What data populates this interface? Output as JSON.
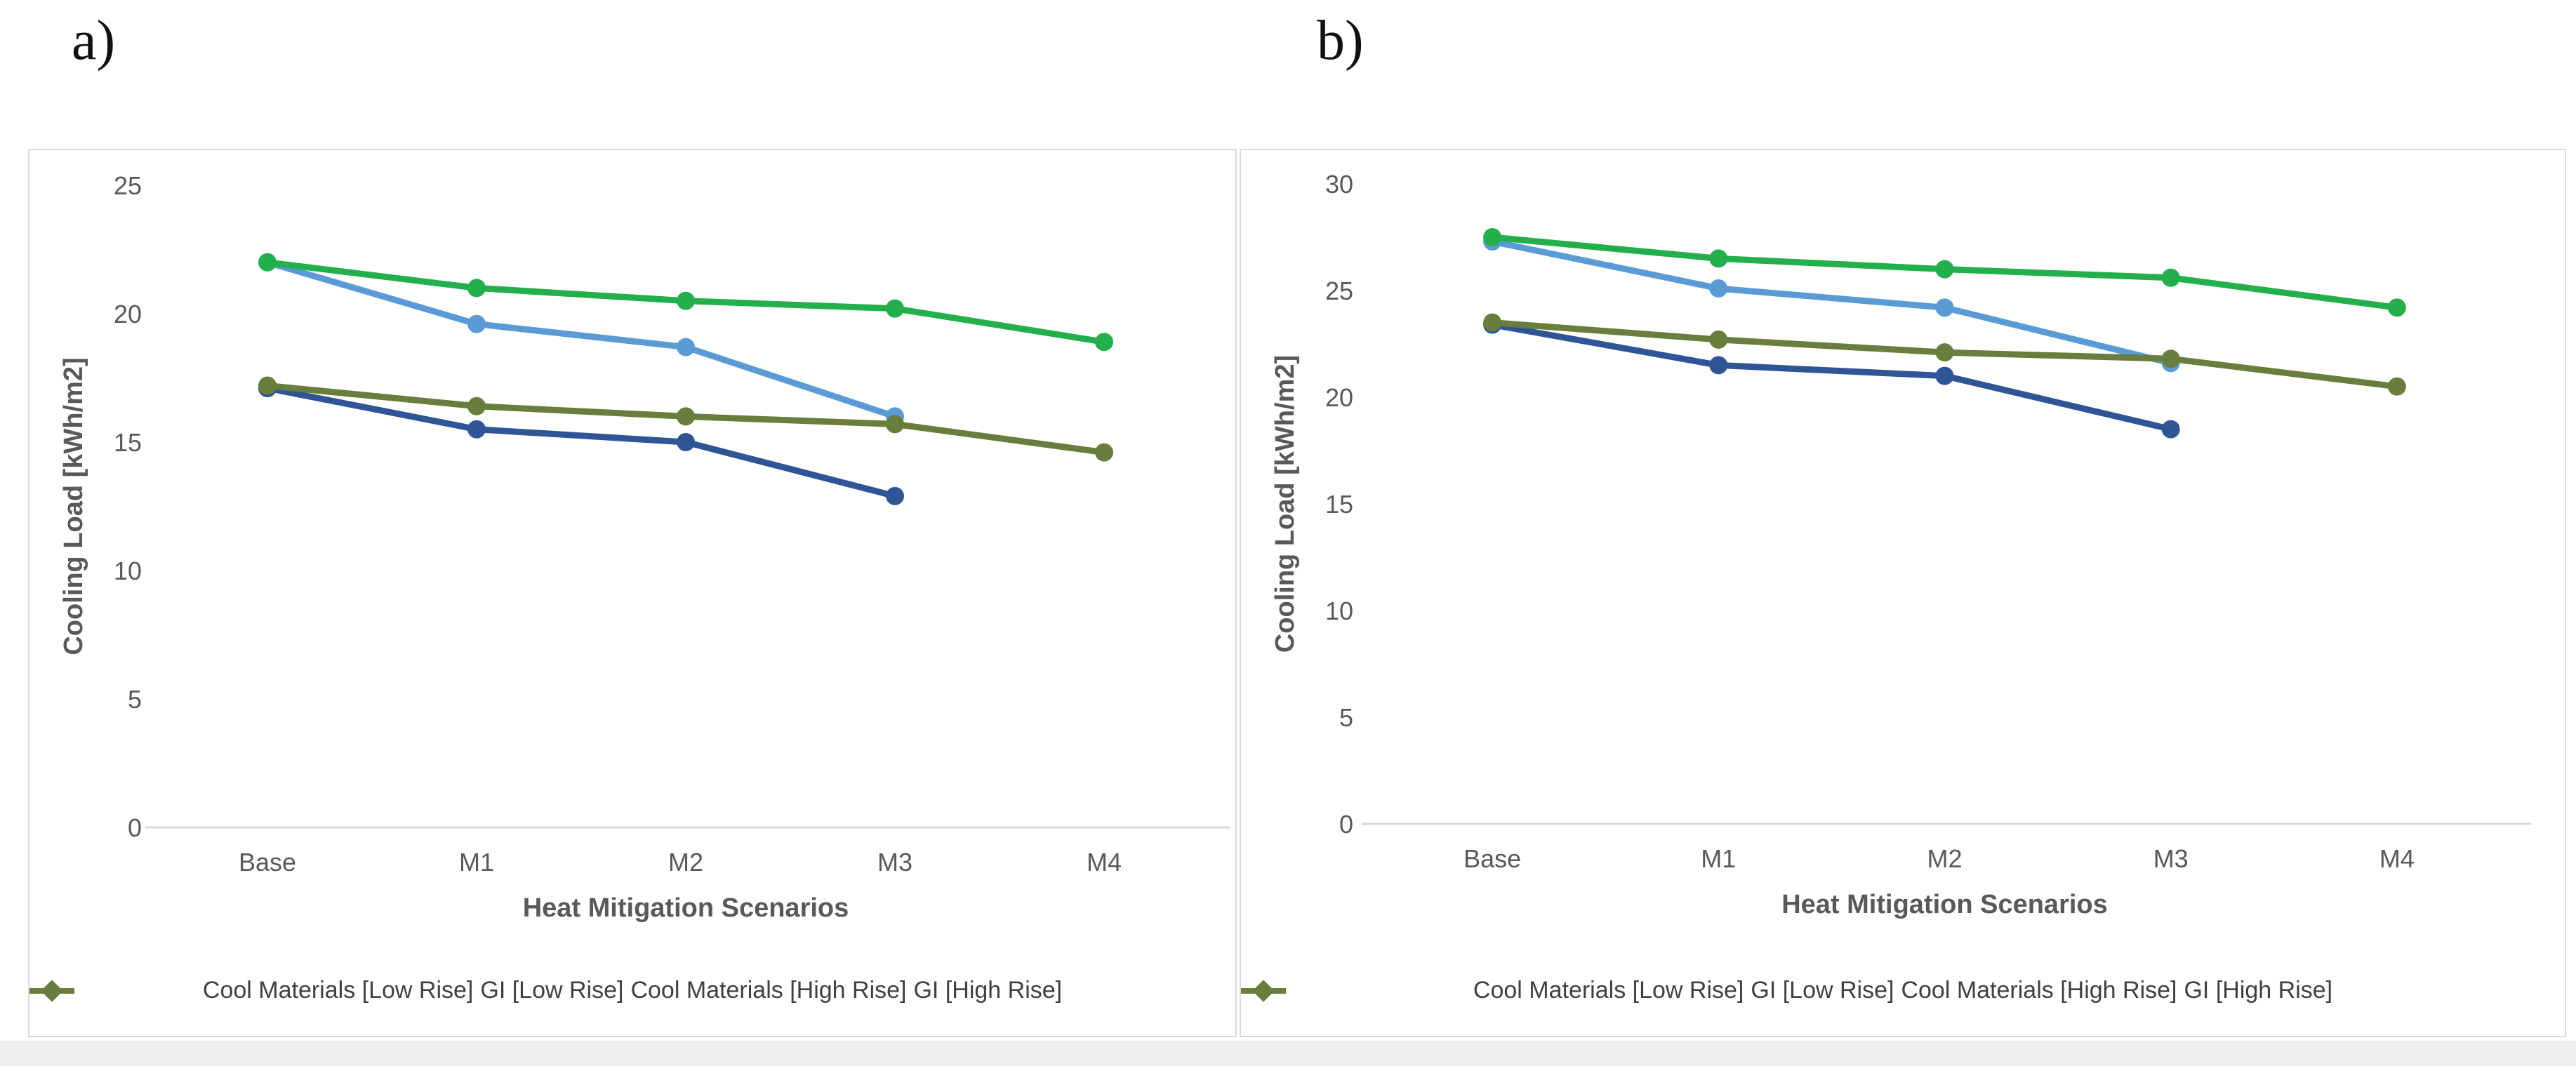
{
  "chart_data": [
    {
      "type": "line",
      "panel_label": "a)",
      "title": "",
      "xlabel": "Heat Mitigation Scenarios",
      "ylabel": "Cooling Load [kWh/m2]",
      "categories": [
        "Base",
        "M1",
        "M2",
        "M3",
        "M4"
      ],
      "ylim": [
        0,
        25
      ],
      "ytick_step": 5,
      "yticks": [
        25,
        20,
        15,
        10,
        5,
        0
      ],
      "grid": false,
      "legend_position": "bottom",
      "series": [
        {
          "name": "Cool Materials [Low Rise]",
          "color": "#5B9BD5",
          "values": [
            22.0,
            19.6,
            18.7,
            16.0,
            null
          ]
        },
        {
          "name": "GI [Low Rise]",
          "color": "#23AF4B",
          "values": [
            22.0,
            21.0,
            20.5,
            20.2,
            18.9
          ]
        },
        {
          "name": "Cool Materials [High Rise]",
          "color": "#2F5597",
          "values": [
            17.1,
            15.5,
            15.0,
            12.9,
            null
          ]
        },
        {
          "name": "GI [High Rise]",
          "color": "#697D3C",
          "values": [
            17.2,
            16.4,
            16.0,
            15.7,
            14.6
          ]
        }
      ]
    },
    {
      "type": "line",
      "panel_label": "b)",
      "title": "",
      "xlabel": "Heat Mitigation Scenarios",
      "ylabel": "Cooling Load [kWh/m2]",
      "categories": [
        "Base",
        "M1",
        "M2",
        "M3",
        "M4"
      ],
      "ylim": [
        0,
        30
      ],
      "ytick_step": 5,
      "yticks": [
        30,
        25,
        20,
        15,
        10,
        5,
        0
      ],
      "grid": false,
      "legend_position": "bottom",
      "series": [
        {
          "name": "Cool Materials [Low Rise]",
          "color": "#5B9BD5",
          "values": [
            27.3,
            25.1,
            24.2,
            21.6,
            null
          ]
        },
        {
          "name": "GI [Low Rise]",
          "color": "#23AF4B",
          "values": [
            27.5,
            26.5,
            26.0,
            25.6,
            24.2
          ]
        },
        {
          "name": "Cool Materials [High Rise]",
          "color": "#2F5597",
          "values": [
            23.4,
            21.5,
            21.0,
            18.5,
            null
          ]
        },
        {
          "name": "GI [High Rise]",
          "color": "#697D3C",
          "values": [
            23.5,
            22.7,
            22.1,
            21.8,
            20.5
          ]
        }
      ]
    }
  ]
}
